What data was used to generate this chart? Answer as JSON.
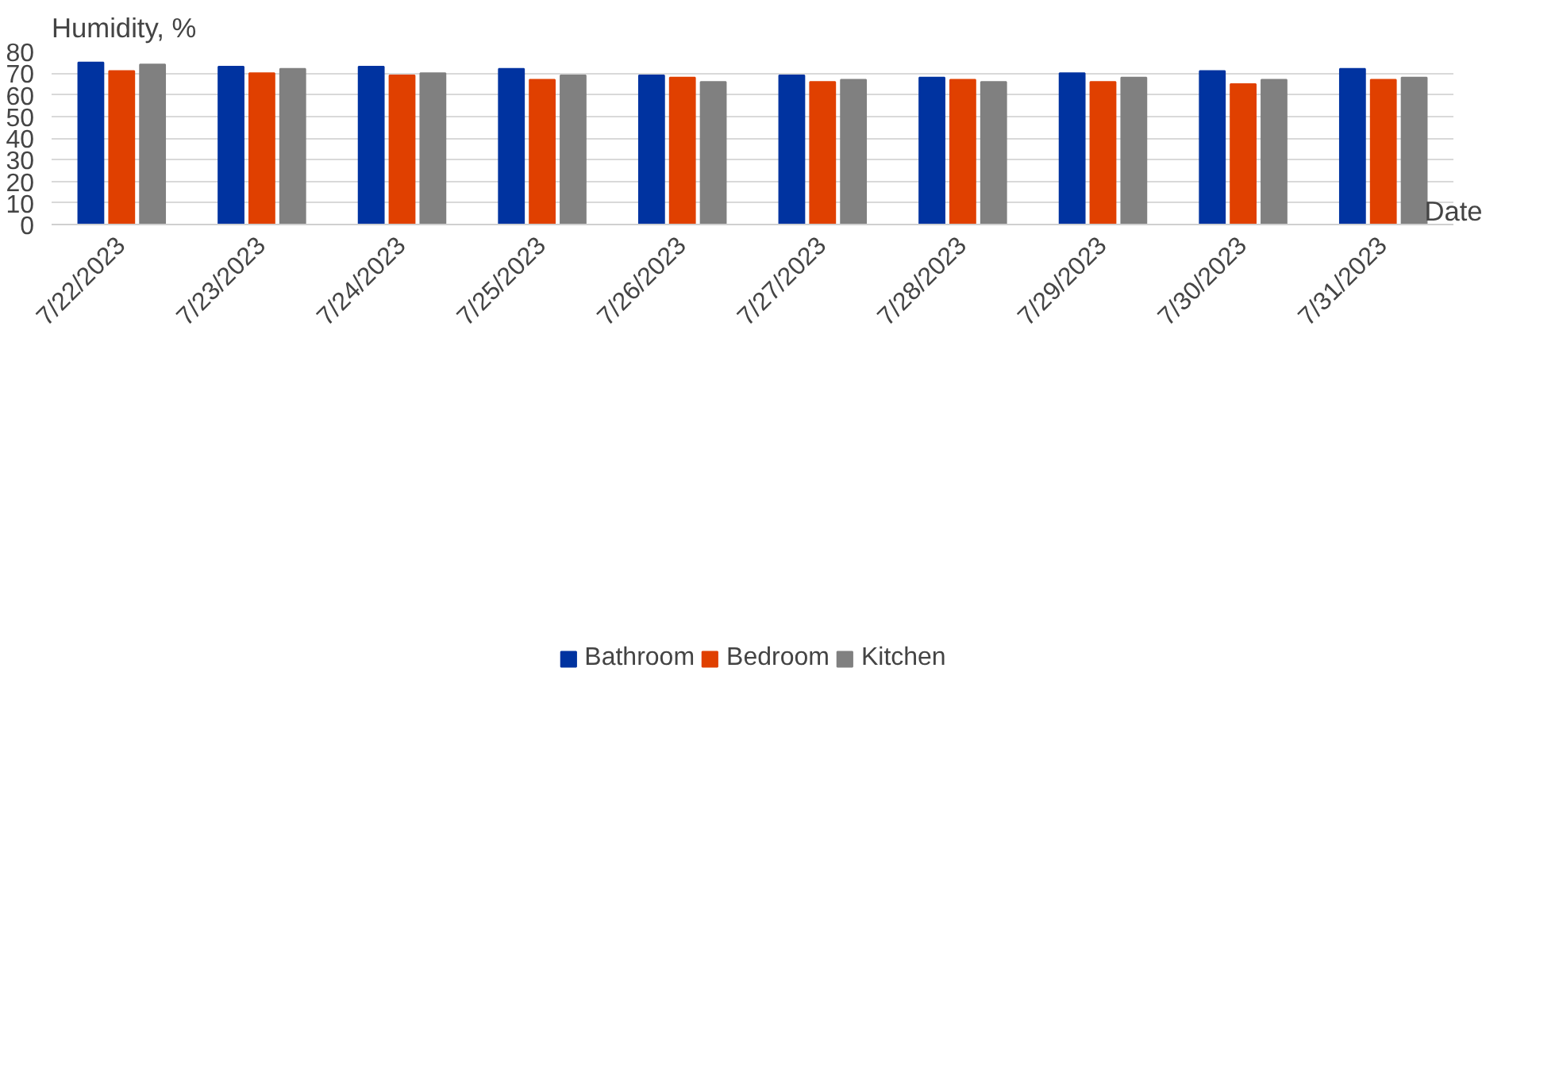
{
  "chart_data": {
    "type": "bar",
    "ylabel": "Humidity, %",
    "xlabel": "Date",
    "categories": [
      "7/22/2023",
      "7/23/2023",
      "7/24/2023",
      "7/25/2023",
      "7/26/2023",
      "7/27/2023",
      "7/28/2023",
      "7/29/2023",
      "7/30/2023",
      "7/31/2023"
    ],
    "series": [
      {
        "name": "Bathroom",
        "color": "#0033a0",
        "values": [
          75,
          73,
          73,
          72,
          69,
          69,
          68,
          70,
          71,
          72
        ]
      },
      {
        "name": "Bedroom",
        "color": "#e04000",
        "values": [
          71,
          70,
          69,
          67,
          68,
          66,
          67,
          66,
          65,
          67
        ]
      },
      {
        "name": "Kitchen",
        "color": "#808080",
        "values": [
          74,
          72,
          70,
          69,
          66,
          67,
          66,
          68,
          67,
          68
        ]
      }
    ],
    "ylim": [
      0,
      80
    ],
    "yticks": [
      0,
      10,
      20,
      30,
      40,
      50,
      60,
      70,
      80
    ],
    "grid": "y",
    "legend": "bottom"
  }
}
